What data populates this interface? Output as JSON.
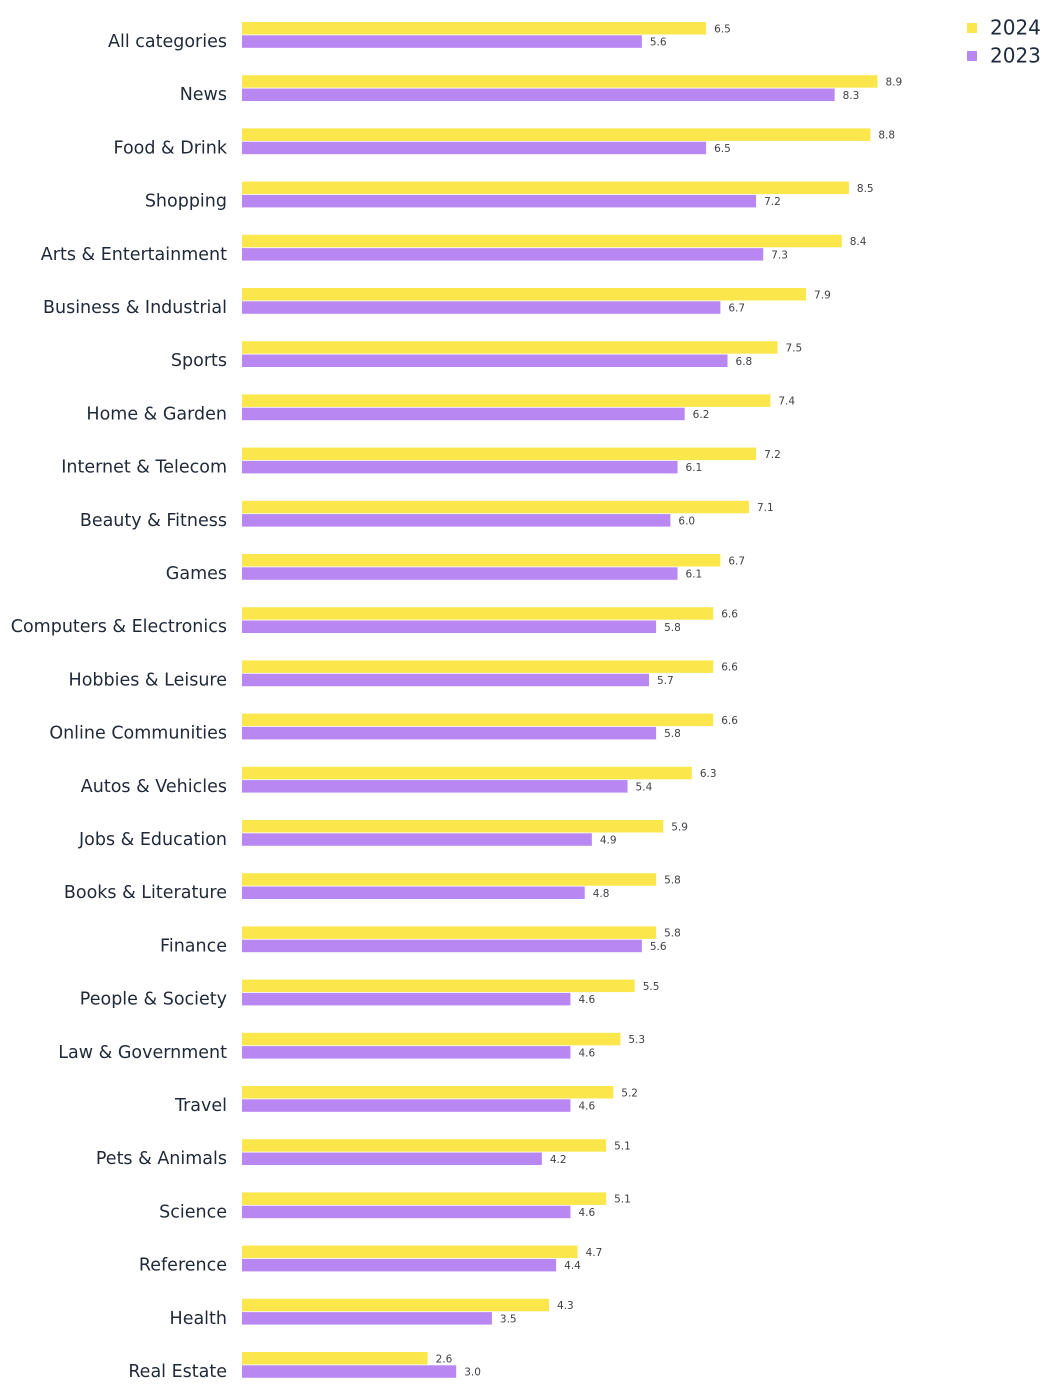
{
  "chart_data": {
    "type": "bar",
    "orientation": "horizontal",
    "categories": [
      "All categories",
      "News",
      "Food & Drink",
      "Shopping",
      "Arts & Entertainment",
      "Business & Industrial",
      "Sports",
      "Home & Garden",
      "Internet & Telecom",
      "Beauty & Fitness",
      "Games",
      "Computers & Electronics",
      "Hobbies & Leisure",
      "Online Communities",
      "Autos & Vehicles",
      "Jobs & Education",
      "Books & Literature",
      "Finance",
      "People & Society",
      "Law & Government",
      "Travel",
      "Pets & Animals",
      "Science",
      "Reference",
      "Health",
      "Real Estate"
    ],
    "series": [
      {
        "name": "2024",
        "color": "#fbe74b",
        "values": [
          6.5,
          8.9,
          8.8,
          8.5,
          8.4,
          7.9,
          7.5,
          7.4,
          7.2,
          7.1,
          6.7,
          6.6,
          6.6,
          6.6,
          6.3,
          5.9,
          5.8,
          5.8,
          5.5,
          5.3,
          5.2,
          5.1,
          5.1,
          4.7,
          4.3,
          2.6
        ],
        "labels": [
          "6.5",
          "8.9",
          "8.8",
          "8.5",
          "8.4",
          "7.9",
          "7.5",
          "7.4",
          "7.2",
          "7.1",
          "6.7",
          "6.6",
          "6.6",
          "6.6",
          "6.3",
          "5.9",
          "5.8",
          "5.8",
          "5.5",
          "5.3",
          "5.2",
          "5.1",
          "5.1",
          "4.7",
          "4.3",
          "2.6"
        ]
      },
      {
        "name": "2023",
        "color": "#b987f2",
        "values": [
          5.6,
          8.3,
          6.5,
          7.2,
          7.3,
          6.7,
          6.8,
          6.2,
          6.1,
          6.0,
          6.1,
          5.8,
          5.7,
          5.8,
          5.4,
          4.9,
          4.8,
          5.6,
          4.6,
          4.6,
          4.6,
          4.2,
          4.6,
          4.4,
          3.5,
          3.0
        ],
        "labels": [
          "5.6",
          "8.3",
          "6.5",
          "7.2",
          "7.3",
          "6.7",
          "6.8",
          "6.2",
          "6.1",
          "6.0",
          "6.1",
          "5.8",
          "5.7",
          "5.8",
          "5.4",
          "4.9",
          "4.8",
          "5.6",
          "4.6",
          "4.6",
          "4.6",
          "4.2",
          "4.6",
          "4.4",
          "3.5",
          "3.0"
        ]
      }
    ],
    "xlim": [
      0,
      8.9
    ],
    "grid": false,
    "legend_position": "top-right",
    "title": "",
    "xlabel": "",
    "ylabel": ""
  }
}
